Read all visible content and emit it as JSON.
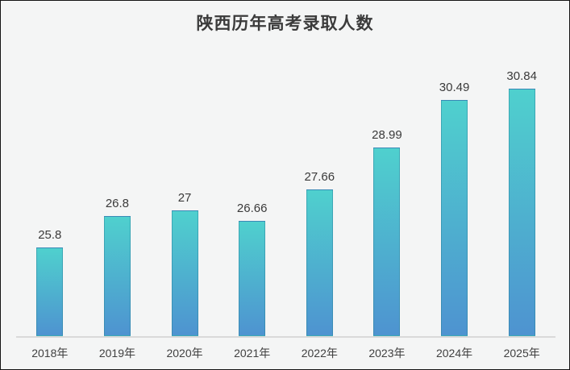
{
  "chart_data": {
    "type": "bar",
    "title": "陕西历年高考录取人数",
    "categories": [
      "2018年",
      "2019年",
      "2020年",
      "2021年",
      "2022年",
      "2023年",
      "2024年",
      "2025年"
    ],
    "values": [
      25.8,
      26.8,
      27,
      26.66,
      27.66,
      28.99,
      30.49,
      30.84
    ],
    "xlabel": "",
    "ylabel": "",
    "ylim": [
      23,
      32
    ],
    "grid": false,
    "legend": false,
    "data_labels_position": "above-bar"
  },
  "colors": {
    "bar_gradient_top": "#4fd0ce",
    "bar_gradient_bottom": "#4e93d0",
    "bar_border": "rgba(35,126,150,0.45)",
    "axis_line": "#d9d9d9",
    "label_text": "#3a3a3a",
    "title_text": "#3b3b3b",
    "background": "#f4f5f5",
    "frame_border": "#141414"
  }
}
